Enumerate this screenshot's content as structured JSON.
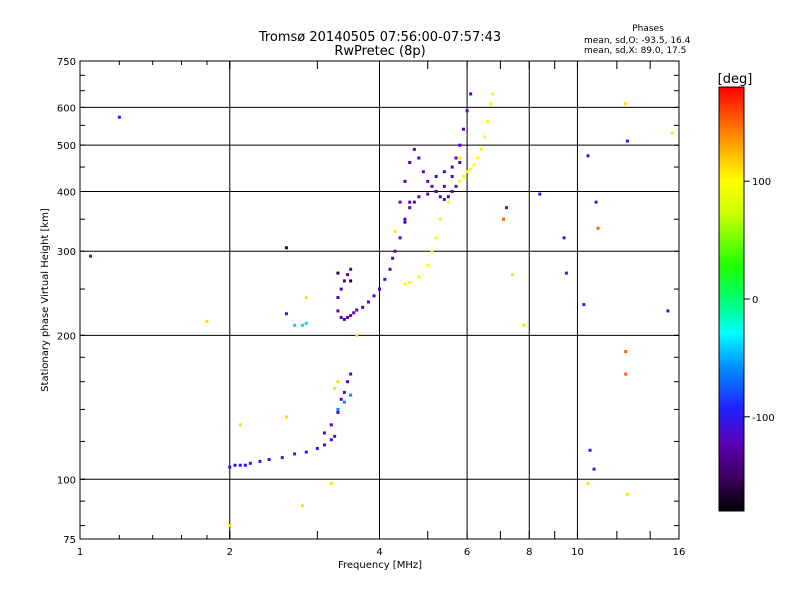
{
  "chart_data": {
    "type": "scatter",
    "title": "Tromsø 20140505 07:56:00-07:57:43",
    "subtitle": "RwPretec (8p)",
    "xlabel": "Frequency [MHz]",
    "ylabel": "Stationary phase Virtual Height [km]",
    "x_scale": "log",
    "y_scale": "log",
    "xlim": [
      1,
      16
    ],
    "ylim": [
      75,
      750
    ],
    "x_ticks": [
      1,
      2,
      4,
      6,
      8,
      10,
      16
    ],
    "x_tick_labels": [
      "1",
      "2",
      "4",
      "6",
      "8",
      "10",
      "16"
    ],
    "y_ticks": [
      75,
      100,
      200,
      300,
      400,
      500,
      600,
      750
    ],
    "y_tick_labels": [
      "75",
      "100",
      "200",
      "300",
      "400",
      "500",
      "600",
      "750"
    ],
    "grid": true,
    "grid_x": [
      2,
      4,
      6,
      8,
      10
    ],
    "grid_y": [
      100,
      200,
      300,
      400,
      500,
      600
    ],
    "stats": {
      "heading": "Phases",
      "line_o": "mean, sd,O: -93.5, 16.4",
      "line_x": "mean, sd,X:  89.0, 17.5"
    },
    "colorbar": {
      "label": "[deg]",
      "range": [
        -180,
        180
      ],
      "ticks": [
        100,
        0,
        -100
      ],
      "tick_labels": [
        "100",
        "0",
        "-100"
      ]
    },
    "series": [
      {
        "phase": -100,
        "x": [
          2.0,
          2.05,
          2.1,
          2.15,
          2.2,
          2.3,
          2.4,
          2.55,
          2.7,
          2.85,
          3.0,
          3.1,
          3.2,
          3.25
        ],
        "y": [
          106,
          107,
          107,
          107,
          108,
          109,
          110,
          111,
          113,
          114,
          116,
          118,
          121,
          123
        ]
      },
      {
        "phase": -120,
        "x": [
          3.1,
          3.2,
          3.3,
          3.35,
          3.4,
          3.45,
          3.5
        ],
        "y": [
          125,
          130,
          138,
          147,
          152,
          160,
          166
        ]
      },
      {
        "phase": -120,
        "x": [
          3.3,
          3.35,
          3.4,
          3.45,
          3.5,
          3.55,
          3.6,
          3.7,
          3.8,
          3.9,
          4.0,
          4.1,
          4.2,
          4.25,
          4.3,
          4.4,
          4.5,
          4.6
        ],
        "y": [
          225,
          218,
          216,
          218,
          220,
          223,
          226,
          229,
          235,
          242,
          250,
          262,
          275,
          290,
          300,
          320,
          345,
          380
        ]
      },
      {
        "phase": -130,
        "x": [
          3.3,
          3.35,
          3.4,
          3.45,
          3.5
        ],
        "y": [
          240,
          250,
          260,
          268,
          275
        ]
      },
      {
        "phase": -120,
        "x": [
          4.4,
          4.5,
          4.6,
          4.7,
          4.8,
          4.9,
          5.0,
          5.1,
          5.2,
          5.3,
          5.4,
          5.5,
          5.6,
          5.7
        ],
        "y": [
          380,
          420,
          460,
          490,
          470,
          440,
          420,
          410,
          400,
          390,
          385,
          390,
          400,
          410
        ]
      },
      {
        "phase": -120,
        "x": [
          4.5,
          4.6,
          4.7,
          4.8,
          5.0,
          5.2,
          5.4,
          5.6,
          5.8
        ],
        "y": [
          350,
          370,
          380,
          390,
          395,
          400,
          410,
          430,
          460
        ]
      },
      {
        "phase": -120,
        "x": [
          5.2,
          5.4,
          5.6,
          5.7,
          5.8,
          5.9,
          6.0,
          6.1
        ],
        "y": [
          430,
          440,
          450,
          470,
          500,
          540,
          590,
          640
        ]
      },
      {
        "phase": 95,
        "x": [
          4.5,
          4.6,
          4.8,
          5.0,
          5.1,
          5.2,
          5.3,
          5.5,
          5.8
        ],
        "y": [
          256,
          258,
          265,
          280,
          300,
          320,
          350,
          380,
          420
        ]
      },
      {
        "phase": 95,
        "x": [
          5.9,
          6.0,
          6.1,
          6.2,
          6.3,
          6.4,
          6.5,
          6.6,
          6.7,
          6.75
        ],
        "y": [
          430,
          440,
          445,
          455,
          470,
          490,
          520,
          560,
          610,
          640
        ]
      },
      {
        "phase": -40,
        "x": [
          2.7,
          2.8,
          2.85
        ],
        "y": [
          210,
          210,
          212
        ]
      },
      {
        "phase": -60,
        "x": [
          3.3,
          3.4,
          3.5
        ],
        "y": [
          140,
          145,
          150
        ]
      },
      {
        "phase": -160,
        "x": [
          2.6,
          3.3,
          3.5
        ],
        "y": [
          305,
          270,
          260
        ]
      },
      {
        "phase": 110,
        "x": [
          1.8,
          2.0,
          2.1,
          2.6,
          2.8,
          2.85,
          3.2,
          3.25,
          3.3,
          3.6,
          4.3,
          5.8,
          7.4,
          7.8,
          10.5,
          12.5,
          12.6,
          15.5
        ],
        "y": [
          214,
          80,
          130,
          135,
          88,
          240,
          98,
          155,
          160,
          200,
          330,
          470,
          268,
          210,
          98,
          610,
          93,
          530
        ]
      },
      {
        "phase": 150,
        "x": [
          7.1,
          11.0,
          12.5,
          12.5
        ],
        "y": [
          350,
          335,
          185,
          166
        ]
      },
      {
        "phase": -100,
        "x": [
          1.05,
          1.2,
          2.6,
          7.2,
          8.4,
          9.4,
          9.5,
          10.3,
          10.5,
          10.6,
          10.8,
          10.9,
          12.6,
          15.2
        ],
        "y": [
          293,
          572,
          222,
          370,
          395,
          320,
          270,
          232,
          475,
          115,
          105,
          380,
          510,
          225
        ]
      }
    ]
  }
}
